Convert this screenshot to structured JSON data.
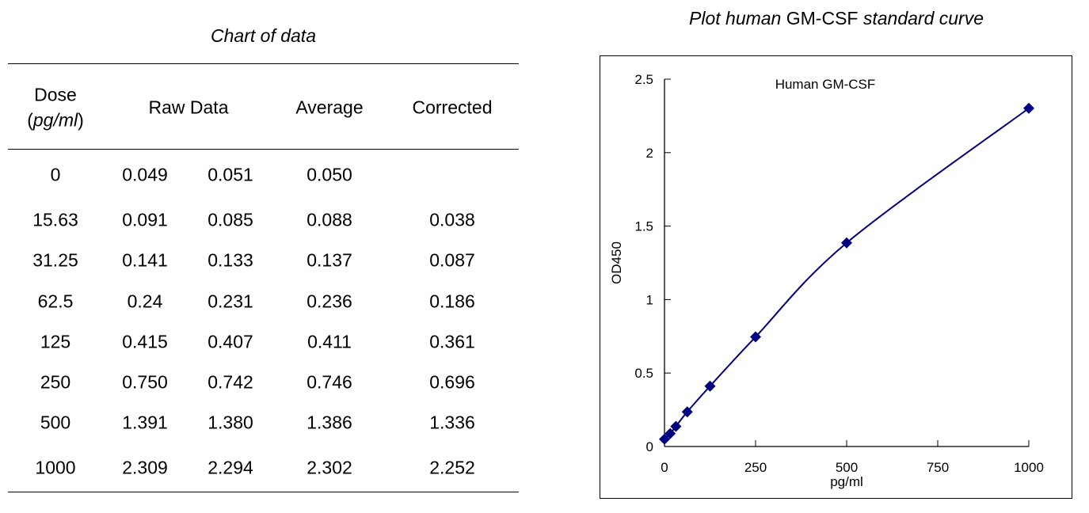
{
  "table": {
    "caption": "Chart of data",
    "headers": {
      "dose": "Dose",
      "dose_unit": "pg/ml",
      "raw": "Raw Data",
      "average": "Average",
      "corrected": "Corrected"
    },
    "rows": [
      [
        "0",
        "0.049",
        "0.051",
        "0.050",
        ""
      ],
      [
        "15.63",
        "0.091",
        "0.085",
        "0.088",
        "0.038"
      ],
      [
        "31.25",
        "0.141",
        "0.133",
        "0.137",
        "0.087"
      ],
      [
        "62.5",
        "0.24",
        "0.231",
        "0.236",
        "0.186"
      ],
      [
        "125",
        "0.415",
        "0.407",
        "0.411",
        "0.361"
      ],
      [
        "250",
        "0.750",
        "0.742",
        "0.746",
        "0.696"
      ],
      [
        "500",
        "1.391",
        "1.380",
        "1.386",
        "1.336"
      ],
      [
        "1000",
        "2.309",
        "2.294",
        "2.302",
        "2.252"
      ]
    ]
  },
  "plot_title": {
    "pre": "Plot human",
    "mid": "GM-CSF",
    "post": "standard curve"
  },
  "chart_data": {
    "type": "line",
    "title": "Human GM-CSF",
    "xlabel": "pg/ml",
    "ylabel": "OD450",
    "xlim": [
      0,
      1000
    ],
    "ylim": [
      0,
      2.5
    ],
    "xticks": [
      "0",
      "250",
      "500",
      "750",
      "1000"
    ],
    "yticks": [
      "0",
      "0.5",
      "1",
      "1.5",
      "2",
      "2.5"
    ],
    "grid": false,
    "x": [
      0,
      15.63,
      31.25,
      62.5,
      125,
      250,
      500,
      1000
    ],
    "y": [
      0.05,
      0.088,
      0.137,
      0.236,
      0.411,
      0.746,
      1.386,
      2.302
    ],
    "marker": "diamond",
    "color": "#000080"
  }
}
